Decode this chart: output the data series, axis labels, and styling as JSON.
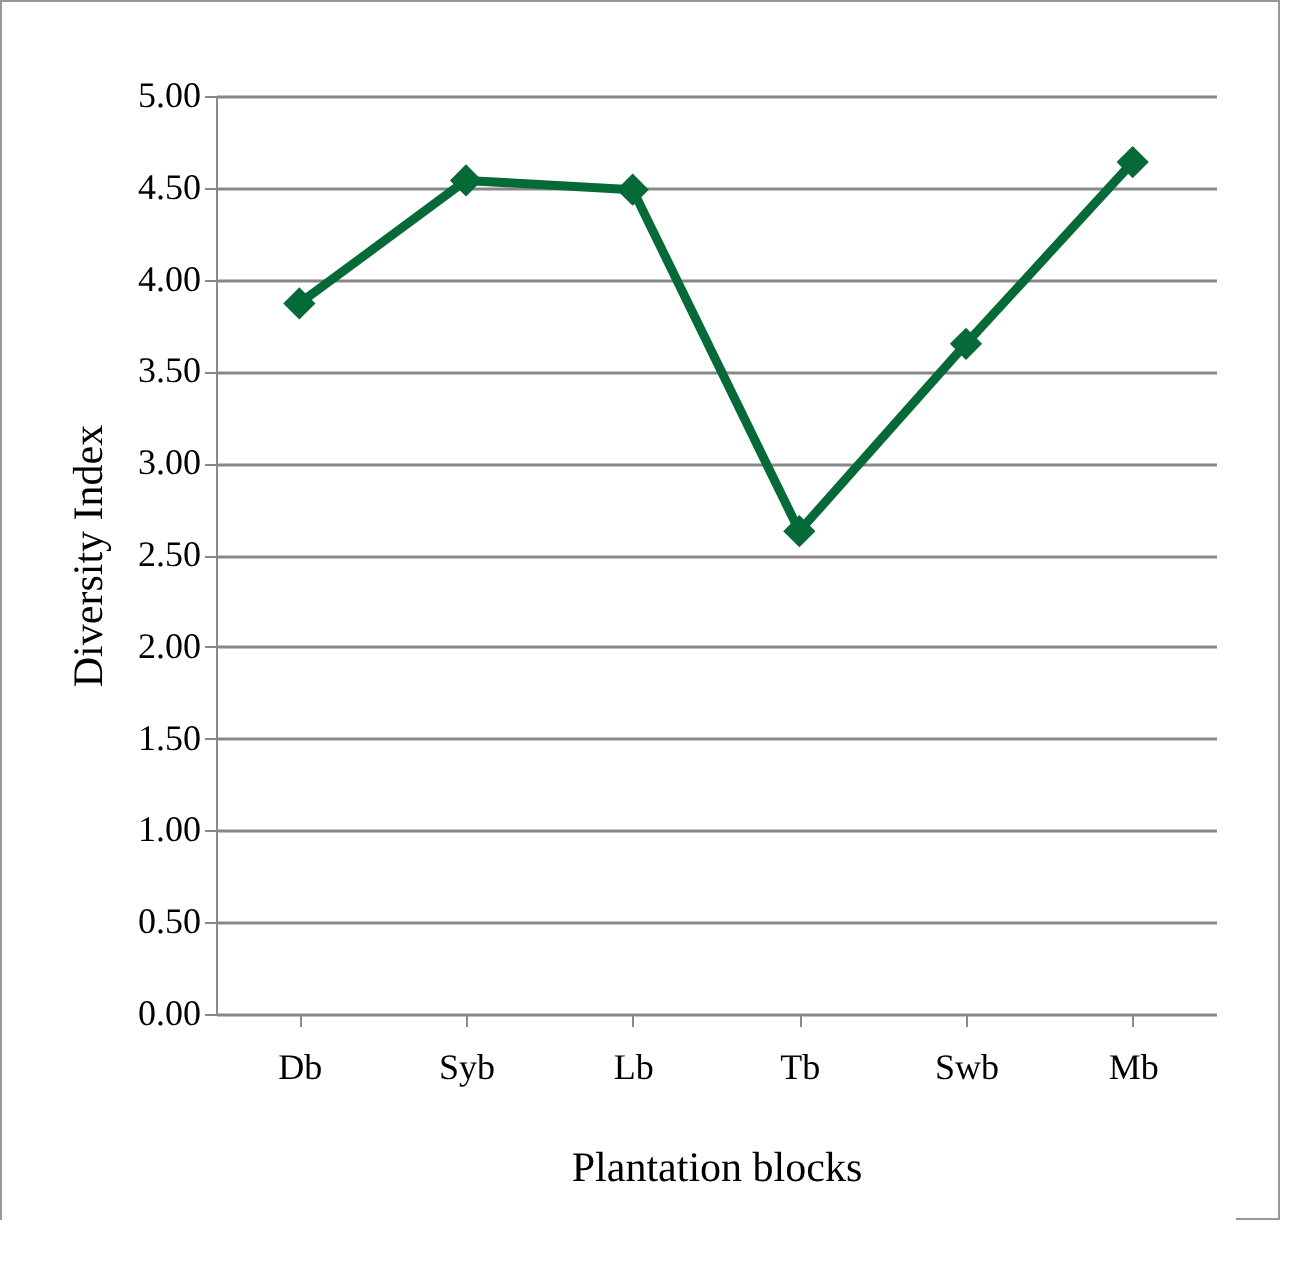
{
  "chart_data": {
    "type": "line",
    "xlabel": "Plantation blocks",
    "ylabel": "Diversity Index",
    "categories": [
      "Db",
      "Syb",
      "Lb",
      "Tb",
      "Swb",
      "Mb"
    ],
    "series": [
      {
        "color": "#066a38",
        "values": [
          3.87,
          4.54,
          4.49,
          2.63,
          3.65,
          4.64
        ]
      }
    ],
    "ylim": [
      0,
      5
    ],
    "yticks": [
      {
        "value": 0,
        "label": "0.00"
      },
      {
        "value": 0.5,
        "label": "0.50"
      },
      {
        "value": 1,
        "label": "1.00"
      },
      {
        "value": 1.5,
        "label": "1.50"
      },
      {
        "value": 2,
        "label": "2.00"
      },
      {
        "value": 2.5,
        "label": "2.50"
      },
      {
        "value": 3,
        "label": "3.00"
      },
      {
        "value": 3.5,
        "label": "3.50"
      },
      {
        "value": 4,
        "label": "4.00"
      },
      {
        "value": 4.5,
        "label": "4.50"
      },
      {
        "value": 5,
        "label": "5.00"
      }
    ],
    "grid": "y",
    "marker": "diamond",
    "line_style": "solid"
  }
}
